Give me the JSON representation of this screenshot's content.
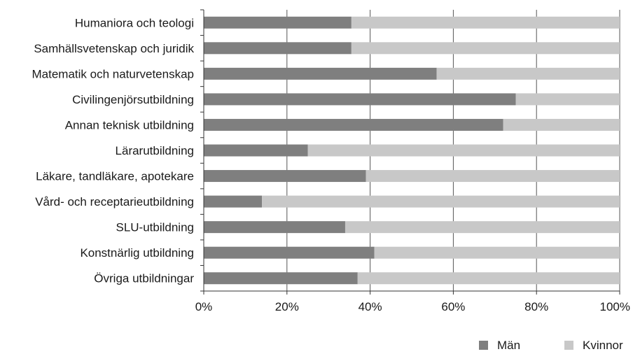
{
  "chart_data": {
    "type": "bar",
    "orientation": "horizontal",
    "stacked": "percent",
    "categories": [
      "Humaniora och teologi",
      "Samhällsvetenskap och juridik",
      "Matematik och naturvetenskap",
      "Civilingenjörsutbildning",
      "Annan teknisk utbildning",
      "Lärarutbildning",
      "Läkare, tandläkare, apotekare",
      "Vård- och receptarieutbildning",
      "SLU-utbildning",
      "Konstnärlig utbildning",
      "Övriga utbildningar"
    ],
    "series": [
      {
        "name": "Män",
        "color": "#7f7f7f",
        "values": [
          35.5,
          35.5,
          56,
          75,
          72,
          25,
          39,
          14,
          34,
          41,
          37
        ]
      },
      {
        "name": "Kvinnor",
        "color": "#c8c8c8",
        "values": [
          64.5,
          64.5,
          44,
          25,
          28,
          75,
          61,
          86,
          66,
          59,
          63
        ]
      }
    ],
    "xlim": [
      0,
      100
    ],
    "xticks": [
      "0%",
      "20%",
      "40%",
      "60%",
      "80%",
      "100%"
    ],
    "grid": true,
    "legend": "bottom-right"
  }
}
